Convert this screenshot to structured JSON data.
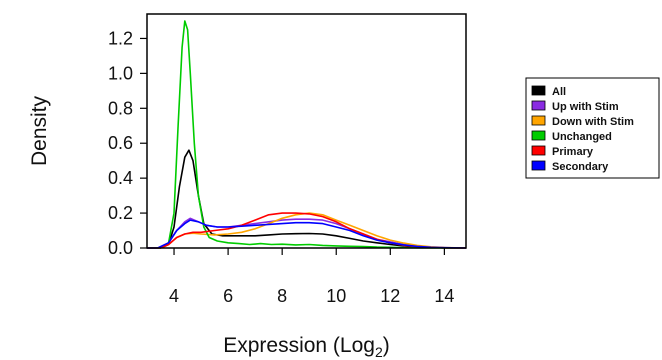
{
  "chart_data": {
    "type": "line",
    "title": "",
    "xlabel": "Expression (Log",
    "xlabel_sub": "2",
    "xlabel_close": ")",
    "ylabel": "Density",
    "xlim": [
      3,
      14.8
    ],
    "ylim": [
      0,
      1.34
    ],
    "x_ticks": [
      4,
      6,
      8,
      10,
      12,
      14
    ],
    "y_ticks": [
      0.0,
      0.2,
      0.4,
      0.6,
      0.8,
      1.0,
      1.2
    ],
    "x_tick_labels": [
      "4",
      "6",
      "8",
      "10",
      "12",
      "14"
    ],
    "y_tick_labels": [
      "0.0",
      "0.2",
      "0.4",
      "0.6",
      "0.8",
      "1.0",
      "1.2"
    ],
    "grid": false,
    "legend_position": "right",
    "series": [
      {
        "name": "All",
        "color": "#000000",
        "points": [
          [
            3.0,
            0.0
          ],
          [
            3.5,
            0.0
          ],
          [
            3.8,
            0.02
          ],
          [
            4.0,
            0.12
          ],
          [
            4.2,
            0.35
          ],
          [
            4.4,
            0.52
          ],
          [
            4.55,
            0.56
          ],
          [
            4.7,
            0.5
          ],
          [
            4.9,
            0.3
          ],
          [
            5.1,
            0.14
          ],
          [
            5.4,
            0.08
          ],
          [
            5.8,
            0.07
          ],
          [
            6.5,
            0.07
          ],
          [
            7.0,
            0.07
          ],
          [
            7.5,
            0.075
          ],
          [
            8.0,
            0.08
          ],
          [
            8.5,
            0.082
          ],
          [
            9.0,
            0.083
          ],
          [
            9.5,
            0.08
          ],
          [
            10.0,
            0.07
          ],
          [
            10.5,
            0.055
          ],
          [
            11.0,
            0.04
          ],
          [
            11.5,
            0.03
          ],
          [
            12.0,
            0.02
          ],
          [
            12.5,
            0.012
          ],
          [
            13.0,
            0.007
          ],
          [
            13.5,
            0.003
          ],
          [
            14.0,
            0.001
          ],
          [
            14.8,
            0.0
          ]
        ]
      },
      {
        "name": "Up with Stim",
        "color": "#8A2BE2",
        "points": [
          [
            3.0,
            0.0
          ],
          [
            3.4,
            0.0
          ],
          [
            3.8,
            0.03
          ],
          [
            4.1,
            0.1
          ],
          [
            4.4,
            0.15
          ],
          [
            4.6,
            0.17
          ],
          [
            4.9,
            0.15
          ],
          [
            5.2,
            0.13
          ],
          [
            5.6,
            0.12
          ],
          [
            6.0,
            0.12
          ],
          [
            6.5,
            0.13
          ],
          [
            7.0,
            0.14
          ],
          [
            7.5,
            0.15
          ],
          [
            8.0,
            0.16
          ],
          [
            8.5,
            0.165
          ],
          [
            9.0,
            0.165
          ],
          [
            9.5,
            0.16
          ],
          [
            10.0,
            0.14
          ],
          [
            10.5,
            0.11
          ],
          [
            11.0,
            0.08
          ],
          [
            11.5,
            0.05
          ],
          [
            12.0,
            0.035
          ],
          [
            12.5,
            0.02
          ],
          [
            13.0,
            0.01
          ],
          [
            13.5,
            0.004
          ],
          [
            14.0,
            0.002
          ],
          [
            14.8,
            0.0
          ]
        ]
      },
      {
        "name": "Down with Stim",
        "color": "#FFA500",
        "points": [
          [
            3.0,
            0.0
          ],
          [
            3.5,
            0.0
          ],
          [
            3.8,
            0.02
          ],
          [
            4.1,
            0.06
          ],
          [
            4.4,
            0.08
          ],
          [
            4.7,
            0.085
          ],
          [
            5.0,
            0.08
          ],
          [
            5.5,
            0.075
          ],
          [
            6.0,
            0.08
          ],
          [
            6.5,
            0.09
          ],
          [
            7.0,
            0.11
          ],
          [
            7.5,
            0.14
          ],
          [
            8.0,
            0.17
          ],
          [
            8.5,
            0.19
          ],
          [
            9.0,
            0.2
          ],
          [
            9.5,
            0.19
          ],
          [
            10.0,
            0.16
          ],
          [
            10.5,
            0.13
          ],
          [
            11.0,
            0.1
          ],
          [
            11.5,
            0.07
          ],
          [
            12.0,
            0.045
          ],
          [
            12.5,
            0.028
          ],
          [
            13.0,
            0.015
          ],
          [
            13.5,
            0.007
          ],
          [
            14.0,
            0.003
          ],
          [
            14.8,
            0.0
          ]
        ]
      },
      {
        "name": "Unchanged",
        "color": "#00CC00",
        "points": [
          [
            3.0,
            0.0
          ],
          [
            3.5,
            0.0
          ],
          [
            3.8,
            0.03
          ],
          [
            4.0,
            0.2
          ],
          [
            4.15,
            0.7
          ],
          [
            4.3,
            1.15
          ],
          [
            4.4,
            1.3
          ],
          [
            4.5,
            1.25
          ],
          [
            4.6,
            1.0
          ],
          [
            4.75,
            0.6
          ],
          [
            4.9,
            0.3
          ],
          [
            5.1,
            0.12
          ],
          [
            5.3,
            0.06
          ],
          [
            5.6,
            0.04
          ],
          [
            6.0,
            0.03
          ],
          [
            6.4,
            0.025
          ],
          [
            6.8,
            0.02
          ],
          [
            7.2,
            0.025
          ],
          [
            7.6,
            0.02
          ],
          [
            8.0,
            0.022
          ],
          [
            8.5,
            0.018
          ],
          [
            9.0,
            0.02
          ],
          [
            9.5,
            0.015
          ],
          [
            10.0,
            0.012
          ],
          [
            10.5,
            0.01
          ],
          [
            11.0,
            0.008
          ],
          [
            11.5,
            0.005
          ],
          [
            12.0,
            0.004
          ],
          [
            12.5,
            0.002
          ],
          [
            13.0,
            0.001
          ],
          [
            14.0,
            0.0
          ],
          [
            14.8,
            0.0
          ]
        ]
      },
      {
        "name": "Primary",
        "color": "#FF0000",
        "points": [
          [
            3.0,
            0.0
          ],
          [
            3.5,
            0.0
          ],
          [
            3.8,
            0.02
          ],
          [
            4.1,
            0.06
          ],
          [
            4.4,
            0.08
          ],
          [
            4.7,
            0.09
          ],
          [
            5.0,
            0.09
          ],
          [
            5.5,
            0.1
          ],
          [
            6.0,
            0.11
          ],
          [
            6.5,
            0.13
          ],
          [
            7.0,
            0.16
          ],
          [
            7.5,
            0.19
          ],
          [
            8.0,
            0.2
          ],
          [
            8.5,
            0.2
          ],
          [
            9.0,
            0.195
          ],
          [
            9.5,
            0.18
          ],
          [
            10.0,
            0.15
          ],
          [
            10.5,
            0.11
          ],
          [
            11.0,
            0.08
          ],
          [
            11.5,
            0.05
          ],
          [
            12.0,
            0.03
          ],
          [
            12.5,
            0.015
          ],
          [
            13.0,
            0.008
          ],
          [
            13.5,
            0.003
          ],
          [
            14.0,
            0.001
          ],
          [
            14.8,
            0.0
          ]
        ]
      },
      {
        "name": "Secondary",
        "color": "#0000FF",
        "points": [
          [
            3.0,
            0.0
          ],
          [
            3.4,
            0.0
          ],
          [
            3.8,
            0.03
          ],
          [
            4.1,
            0.1
          ],
          [
            4.4,
            0.14
          ],
          [
            4.6,
            0.16
          ],
          [
            4.9,
            0.15
          ],
          [
            5.2,
            0.13
          ],
          [
            5.6,
            0.12
          ],
          [
            6.0,
            0.12
          ],
          [
            6.5,
            0.125
          ],
          [
            7.0,
            0.13
          ],
          [
            7.5,
            0.135
          ],
          [
            8.0,
            0.14
          ],
          [
            8.5,
            0.145
          ],
          [
            9.0,
            0.145
          ],
          [
            9.5,
            0.14
          ],
          [
            10.0,
            0.12
          ],
          [
            10.5,
            0.1
          ],
          [
            11.0,
            0.07
          ],
          [
            11.5,
            0.045
          ],
          [
            12.0,
            0.03
          ],
          [
            12.5,
            0.018
          ],
          [
            13.0,
            0.009
          ],
          [
            13.5,
            0.004
          ],
          [
            14.0,
            0.002
          ],
          [
            14.8,
            0.0
          ]
        ]
      }
    ]
  }
}
